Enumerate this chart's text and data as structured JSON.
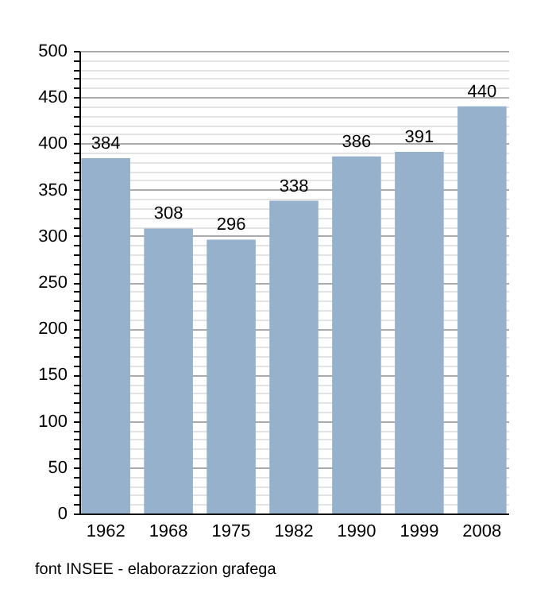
{
  "chart_data": {
    "type": "bar",
    "categories": [
      "1962",
      "1968",
      "1975",
      "1982",
      "1990",
      "1999",
      "2008"
    ],
    "values": [
      384,
      308,
      296,
      338,
      386,
      391,
      440
    ],
    "color": "#96b1cb",
    "data_labels": true,
    "ylim": [
      0,
      500
    ],
    "yticks": [
      0,
      {
        "value": 10,
        "label": null
      },
      {
        "value": 20,
        "label": null
      },
      {
        "value": 30,
        "label": null
      },
      {
        "value": 40,
        "label": null
      },
      50,
      {
        "value": 60,
        "label": null
      },
      {
        "value": 70,
        "label": null
      },
      {
        "value": 80,
        "label": null
      },
      {
        "value": 90,
        "label": null
      },
      100,
      {
        "value": 110,
        "label": null
      },
      {
        "value": 120,
        "label": null
      },
      {
        "value": 130,
        "label": null
      },
      {
        "value": 140,
        "label": null
      },
      150,
      {
        "value": 160,
        "label": null
      },
      {
        "value": 170,
        "label": null
      },
      {
        "value": 180,
        "label": null
      },
      {
        "value": 190,
        "label": null
      },
      200,
      {
        "value": 210,
        "label": null
      },
      {
        "value": 220,
        "label": null
      },
      {
        "value": 230,
        "label": null
      },
      {
        "value": 240,
        "label": null
      },
      250,
      {
        "value": 260,
        "label": null
      },
      {
        "value": 270,
        "label": null
      },
      {
        "value": 280,
        "label": null
      },
      {
        "value": 290,
        "label": null
      },
      300,
      {
        "value": 310,
        "label": null
      },
      {
        "value": 320,
        "label": null
      },
      {
        "value": 330,
        "label": null
      },
      {
        "value": 340,
        "label": null
      },
      350,
      {
        "value": 360,
        "label": null
      },
      {
        "value": 370,
        "label": null
      },
      {
        "value": 380,
        "label": null
      },
      {
        "value": 390,
        "label": null
      },
      400,
      {
        "value": 410,
        "label": null
      },
      {
        "value": 420,
        "label": null
      },
      {
        "value": 430,
        "label": null
      },
      {
        "value": 440,
        "label": null
      },
      450,
      {
        "value": 460,
        "label": null
      },
      {
        "value": 470,
        "label": null
      },
      {
        "value": 480,
        "label": null
      },
      {
        "value": 490,
        "label": null
      },
      500
    ],
    "grid": true,
    "annotations": [
      "font INSEE - elaborazzion grafega"
    ]
  }
}
